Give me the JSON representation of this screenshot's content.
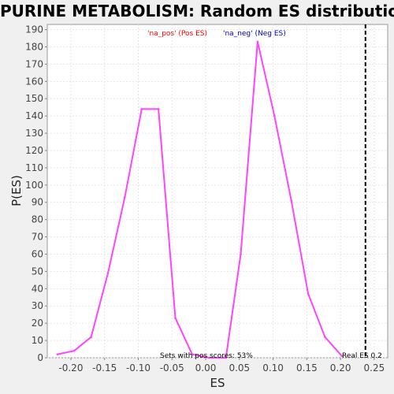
{
  "chart_data": {
    "type": "line",
    "title": "PURINE METABOLISM: Random ES distribution",
    "xlabel": "ES",
    "ylabel": "P(ES)",
    "xlim": [
      -0.235,
      0.27
    ],
    "ylim": [
      0,
      193
    ],
    "xticks": [
      "-0.20",
      "-0.15",
      "-0.10",
      "-0.05",
      "0.00",
      "0.05",
      "0.10",
      "0.15",
      "0.20",
      "0.25"
    ],
    "yticks": [
      "0",
      "10",
      "20",
      "30",
      "40",
      "50",
      "60",
      "70",
      "80",
      "90",
      "100",
      "110",
      "120",
      "130",
      "140",
      "150",
      "160",
      "170",
      "180",
      "190"
    ],
    "grid": true,
    "legend": [
      {
        "label": "'na_pos' (Pos ES)",
        "color": "#ff0000"
      },
      {
        "label": "'na_neg' (Neg ES)",
        "color": "#0000cc"
      }
    ],
    "series": [
      {
        "color": "#ff44ff",
        "x": [
          -0.22,
          -0.195,
          -0.17,
          -0.145,
          -0.12,
          -0.095,
          -0.07,
          -0.045,
          -0.02,
          0.005,
          0.03,
          0.052,
          0.077,
          0.102,
          0.127,
          0.152,
          0.177,
          0.202
        ],
        "y": [
          2,
          4,
          12,
          49,
          93,
          144,
          144,
          23,
          2,
          0,
          0,
          60,
          183,
          140,
          91,
          37,
          12,
          1
        ]
      }
    ],
    "real_es": 0.237,
    "annotations": {
      "real_es_label": "Real ES 0.2",
      "sets_note": "Sets with pos scores: 53%"
    }
  }
}
